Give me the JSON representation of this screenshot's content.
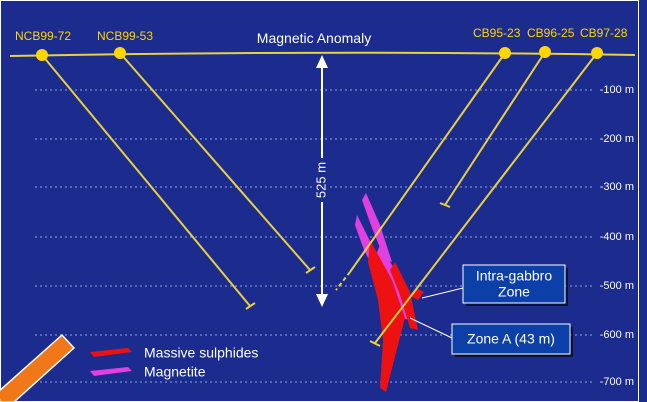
{
  "title": "Magnetic Anomaly",
  "drill_holes": [
    {
      "label": "NCB99-72"
    },
    {
      "label": "NCB99-53"
    },
    {
      "label": "CB95-23"
    },
    {
      "label": "CB96-25"
    },
    {
      "label": "CB97-28"
    }
  ],
  "depth_labels": [
    "-100 m",
    "-200 m",
    "-300 m",
    "-400 m",
    "-500 m",
    "-600 m",
    "-700 m"
  ],
  "measurement": "525 m",
  "zones": [
    {
      "label_lines": [
        "Intra-gabbro",
        "Zone"
      ]
    },
    {
      "label": "Zone A (43 m)"
    }
  ],
  "legend": [
    {
      "label": "Massive sulphides"
    },
    {
      "label": "Magnetite"
    }
  ]
}
